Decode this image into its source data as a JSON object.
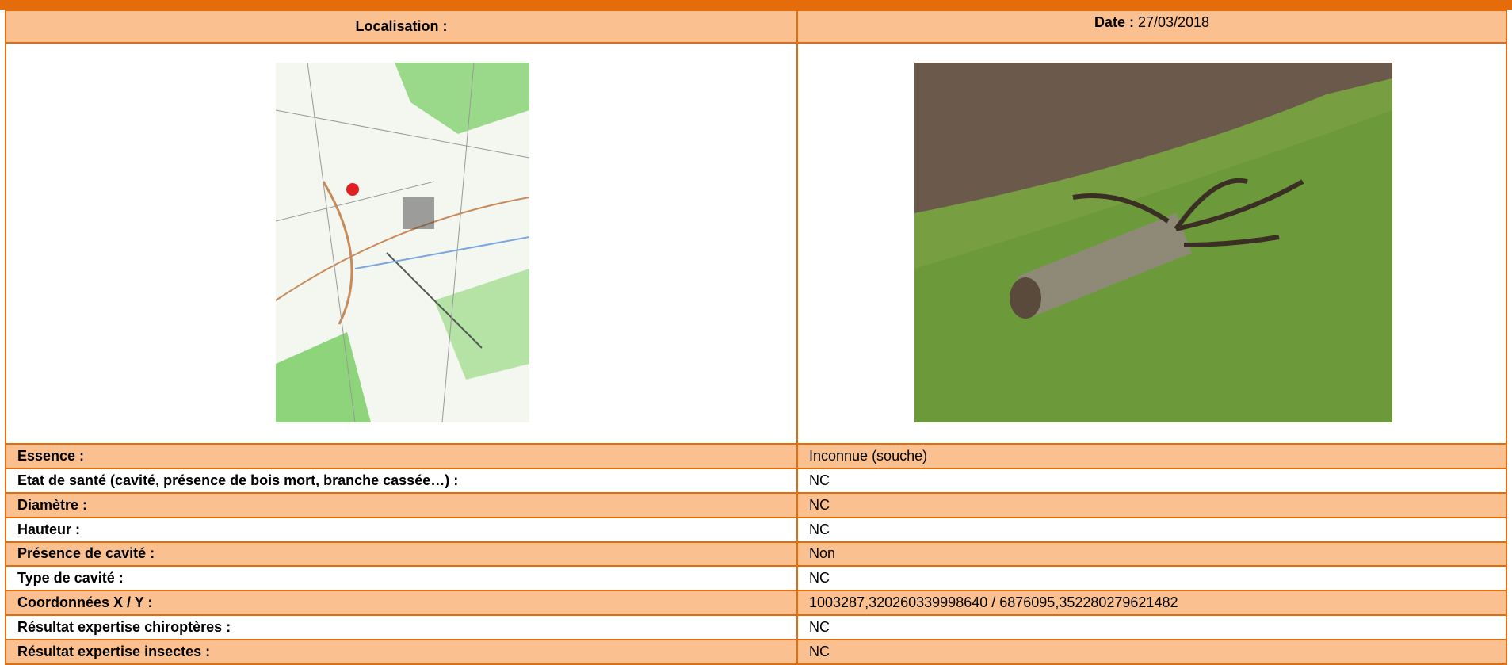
{
  "header": {
    "localisation_label": "Localisation :",
    "date_label": "Date :",
    "date": "27/03/2018"
  },
  "rows": [
    [
      "Essence :",
      "Inconnue (souche)"
    ],
    [
      "Etat de santé (cavité, présence de bois mort, branche cassée…) :",
      "NC"
    ],
    [
      "Diamètre :",
      "NC"
    ],
    [
      "Hauteur :",
      "NC"
    ],
    [
      "Présence de cavité :",
      "Non"
    ],
    [
      "Type de cavité :",
      "NC"
    ],
    [
      "Coordonnées X / Y :",
      "1003287,320260339998640 / 6876095,352280279621482"
    ],
    [
      "Résultat expertise chiroptères :",
      "NC"
    ],
    [
      "Résultat expertise insectes :",
      "NC"
    ]
  ]
}
